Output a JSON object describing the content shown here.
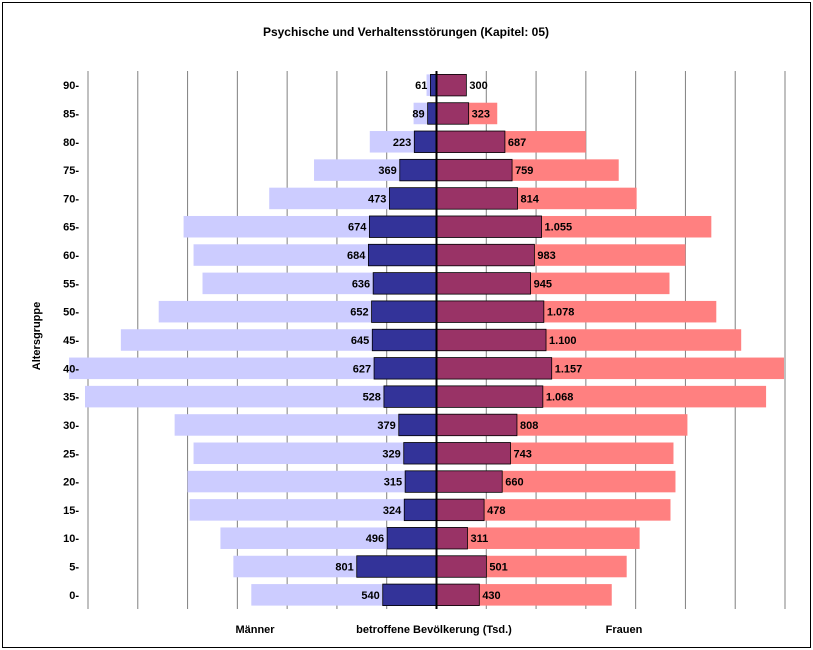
{
  "chart_data": {
    "type": "bar",
    "orientation": "horizontal-pyramid",
    "title": "Psychische und Verhaltensstörungen (Kapitel: 05)",
    "ylabel": "Altersgruppe",
    "xlabel": "betroffene Bevölkerung (Tsd.)",
    "left_label": "Männer",
    "right_label": "Frauen",
    "categories": [
      "90-",
      "85-",
      "80-",
      "75-",
      "70-",
      "65-",
      "60-",
      "55-",
      "50-",
      "45-",
      "40-",
      "35-",
      "30-",
      "25-",
      "20-",
      "15-",
      "10-",
      "5-",
      "0-"
    ],
    "series": [
      {
        "name": "Männer",
        "labels": [
          "61",
          "89",
          "223",
          "369",
          "473",
          "674",
          "684",
          "636",
          "652",
          "645",
          "627",
          "528",
          "379",
          "329",
          "315",
          "324",
          "496",
          "801",
          "540"
        ],
        "values": [
          61,
          89,
          223,
          369,
          473,
          674,
          684,
          636,
          652,
          645,
          627,
          528,
          379,
          329,
          315,
          324,
          496,
          801,
          540
        ]
      },
      {
        "name": "Frauen",
        "labels": [
          "300",
          "323",
          "687",
          "759",
          "814",
          "1.055",
          "983",
          "945",
          "1.078",
          "1.100",
          "1.157",
          "1.068",
          "808",
          "743",
          "660",
          "478",
          "311",
          "501",
          "430"
        ],
        "values": [
          300,
          323,
          687,
          759,
          814,
          1055,
          983,
          945,
          1078,
          1100,
          1157,
          1068,
          808,
          743,
          660,
          478,
          311,
          501,
          430
        ]
      }
    ],
    "background_population": {
      "Männer": [
        100,
        230,
        670,
        1230,
        1680,
        2540,
        2440,
        2350,
        2790,
        3170,
        3690,
        3530,
        2630,
        2440,
        2500,
        2480,
        2170,
        2040,
        1860
      ],
      "Frauen": [
        300,
        610,
        1500,
        1830,
        2010,
        2760,
        2500,
        2340,
        2810,
        3060,
        3490,
        3310,
        2520,
        2380,
        2400,
        2350,
        2040,
        1910,
        1760
      ]
    },
    "xlim": [
      -3500,
      3500
    ],
    "grid": true,
    "colors": {
      "male_affected": "#333399",
      "male_population": "#ccccff",
      "female_affected": "#993366",
      "female_population": "#ff8080",
      "gridline": "#808080",
      "axis": "#000000"
    }
  }
}
